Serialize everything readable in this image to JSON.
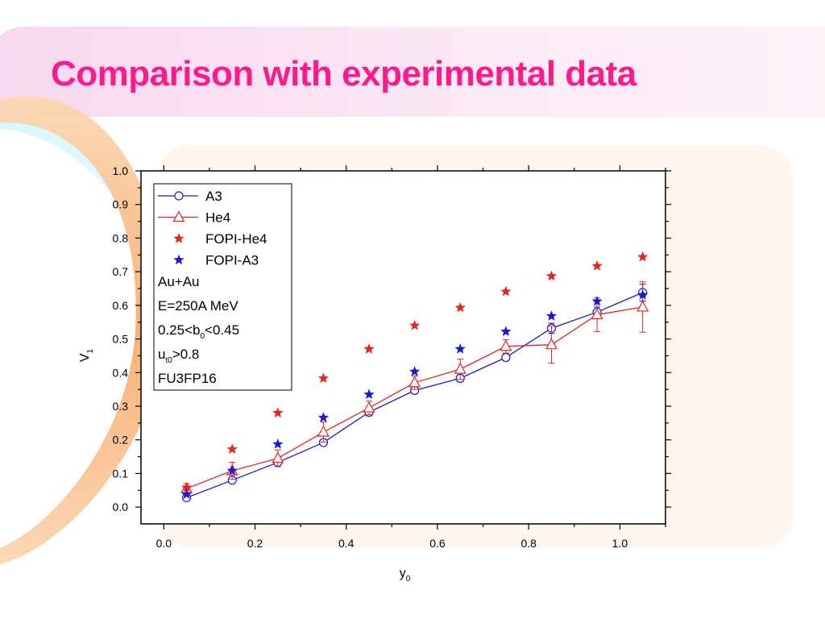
{
  "slide": {
    "title": "Comparison with experimental data",
    "accent_color": "#ff1a8c"
  },
  "chart_data": {
    "type": "scatter",
    "xlabel": "y",
    "xlabel_sub": "0",
    "ylabel": "V",
    "ylabel_sub": "1",
    "xlim": [
      -0.05,
      1.1
    ],
    "ylim": [
      -0.05,
      1.0
    ],
    "x_ticks": [
      "0.0",
      "0.2",
      "0.4",
      "0.6",
      "0.8",
      "1.0"
    ],
    "y_ticks": [
      "0.0",
      "0.1",
      "0.2",
      "0.3",
      "0.4",
      "0.5",
      "0.6",
      "0.7",
      "0.8",
      "0.9",
      "1.0"
    ],
    "legend_placement": "top-left",
    "grid": false,
    "series": [
      {
        "name": "A3",
        "color": "#1a1ad4",
        "marker": "circle-open",
        "line": true,
        "x": [
          0.05,
          0.15,
          0.25,
          0.35,
          0.45,
          0.55,
          0.65,
          0.75,
          0.85,
          0.95,
          1.05
        ],
        "y": [
          0.028,
          0.08,
          0.133,
          0.192,
          0.282,
          0.347,
          0.383,
          0.445,
          0.532,
          0.58,
          0.638
        ],
        "err": [
          0.004,
          0.008,
          0.006,
          0.004,
          0.01,
          0.01,
          0.01,
          0.01,
          0.015,
          0.015,
          0.025
        ]
      },
      {
        "name": "He4",
        "color": "#e8231e",
        "marker": "triangle-open",
        "line": true,
        "x": [
          0.05,
          0.15,
          0.25,
          0.35,
          0.45,
          0.55,
          0.65,
          0.75,
          0.85,
          0.95,
          1.05
        ],
        "y": [
          0.055,
          0.108,
          0.145,
          0.223,
          0.295,
          0.37,
          0.41,
          0.478,
          0.483,
          0.572,
          0.595
        ],
        "err": [
          0.015,
          0.025,
          0.025,
          0.03,
          0.02,
          0.02,
          0.03,
          0.02,
          0.055,
          0.05,
          0.075
        ]
      },
      {
        "name": "FOPI-He4",
        "color": "#e8231e",
        "marker": "star",
        "line": false,
        "x": [
          0.05,
          0.15,
          0.25,
          0.35,
          0.45,
          0.55,
          0.65,
          0.75,
          0.85,
          0.95,
          1.05
        ],
        "y": [
          0.058,
          0.172,
          0.28,
          0.383,
          0.47,
          0.54,
          0.593,
          0.641,
          0.687,
          0.717,
          0.744
        ]
      },
      {
        "name": "FOPI-A3",
        "color": "#1a1ad4",
        "marker": "star",
        "line": false,
        "x": [
          0.05,
          0.15,
          0.25,
          0.35,
          0.45,
          0.55,
          0.65,
          0.75,
          0.85,
          0.95,
          1.05
        ],
        "y": [
          0.038,
          0.108,
          0.187,
          0.266,
          0.335,
          0.403,
          0.47,
          0.522,
          0.568,
          0.612,
          0.631
        ]
      }
    ],
    "annotations": [
      {
        "text": "Au+Au"
      },
      {
        "text": "E=250A MeV"
      },
      {
        "prefix": "0.25<b",
        "sub": "0",
        "suffix": "<0.45"
      },
      {
        "prefix": "u",
        "sub": "t0",
        "suffix": ">0.8"
      },
      {
        "text": "FU3FP16"
      }
    ]
  }
}
